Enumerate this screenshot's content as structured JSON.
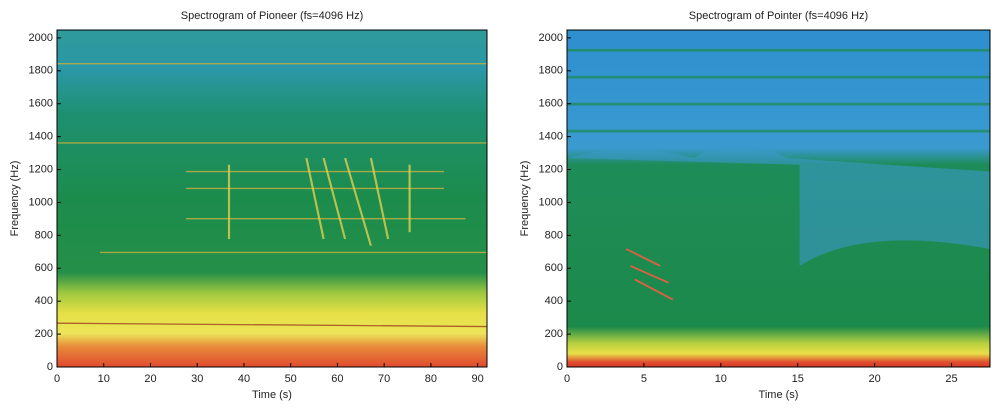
{
  "chart_data": [
    {
      "type": "spectrogram",
      "title": "Spectrogram of Pioneer (fs=4096 Hz)",
      "x_label": "Time (s)",
      "y_label": "Frequency (Hz)",
      "xlim": [
        0,
        92
      ],
      "xticks": [
        0,
        10,
        20,
        30,
        40,
        50,
        60,
        70,
        80,
        90
      ],
      "ylim": [
        0,
        2048
      ],
      "yticks": [
        0,
        200,
        400,
        600,
        800,
        1000,
        1200,
        1400,
        1600,
        1800,
        2000
      ]
    },
    {
      "type": "spectrogram",
      "title": "Spectrogram of Pointer (fs=4096 Hz)",
      "x_label": "Time (s)",
      "y_label": "Frequency (Hz)",
      "xlim": [
        0,
        27.5
      ],
      "xticks": [
        0,
        5,
        10,
        15,
        20,
        25
      ],
      "ylim": [
        0,
        2048
      ],
      "yticks": [
        0,
        200,
        400,
        600,
        800,
        1000,
        1200,
        1400,
        1600,
        1800,
        2000
      ]
    }
  ]
}
